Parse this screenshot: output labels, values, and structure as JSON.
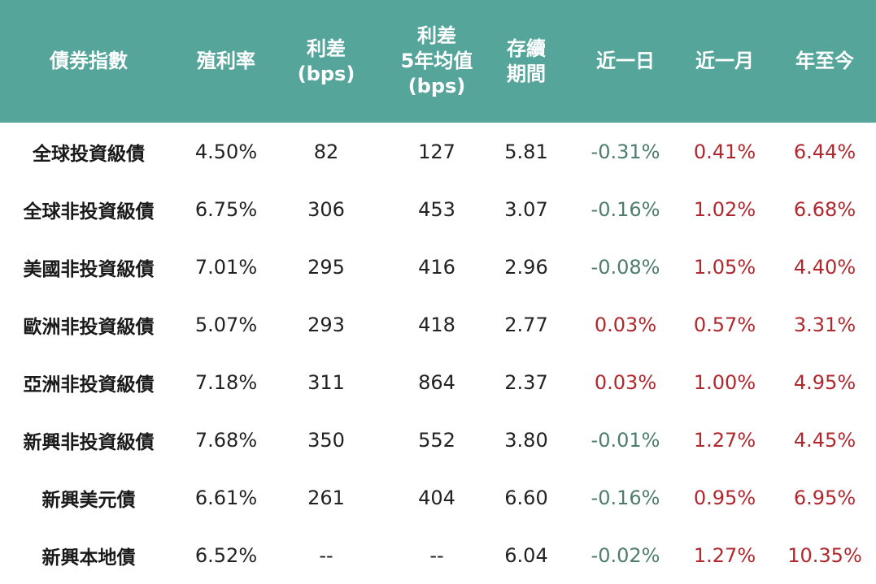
{
  "chart_data": {
    "type": "table",
    "columns": [
      "債券指數",
      "殖利率",
      "利差\n(bps)",
      "利差\n5年均值\n(bps)",
      "存續\n期間",
      "近一日",
      "近一月",
      "年至今"
    ],
    "rows": [
      [
        "全球投資級債",
        "4.50%",
        "82",
        "127",
        "5.81",
        "-0.31%",
        "0.41%",
        "6.44%"
      ],
      [
        "全球非投資級債",
        "6.75%",
        "306",
        "453",
        "3.07",
        "-0.16%",
        "1.02%",
        "6.68%"
      ],
      [
        "美國非投資級債",
        "7.01%",
        "295",
        "416",
        "2.96",
        "-0.08%",
        "1.05%",
        "4.40%"
      ],
      [
        "歐洲非投資級債",
        "5.07%",
        "293",
        "418",
        "2.77",
        "0.03%",
        "0.57%",
        "3.31%"
      ],
      [
        "亞洲非投資級債",
        "7.18%",
        "311",
        "864",
        "2.37",
        "0.03%",
        "1.00%",
        "4.95%"
      ],
      [
        "新興非投資級債",
        "7.68%",
        "350",
        "552",
        "3.80",
        "-0.01%",
        "1.27%",
        "4.45%"
      ],
      [
        "新興美元債",
        "6.61%",
        "261",
        "404",
        "6.60",
        "-0.16%",
        "0.95%",
        "6.95%"
      ],
      [
        "新興本地債",
        "6.52%",
        "--",
        "--",
        "6.04",
        "-0.02%",
        "1.27%",
        "10.35%"
      ]
    ]
  },
  "colors": {
    "header_bg": "#56a59b",
    "header_text": "#ffffff",
    "positive": "#b0282d",
    "negative": "#4e7d6f",
    "body_text": "#222222"
  }
}
